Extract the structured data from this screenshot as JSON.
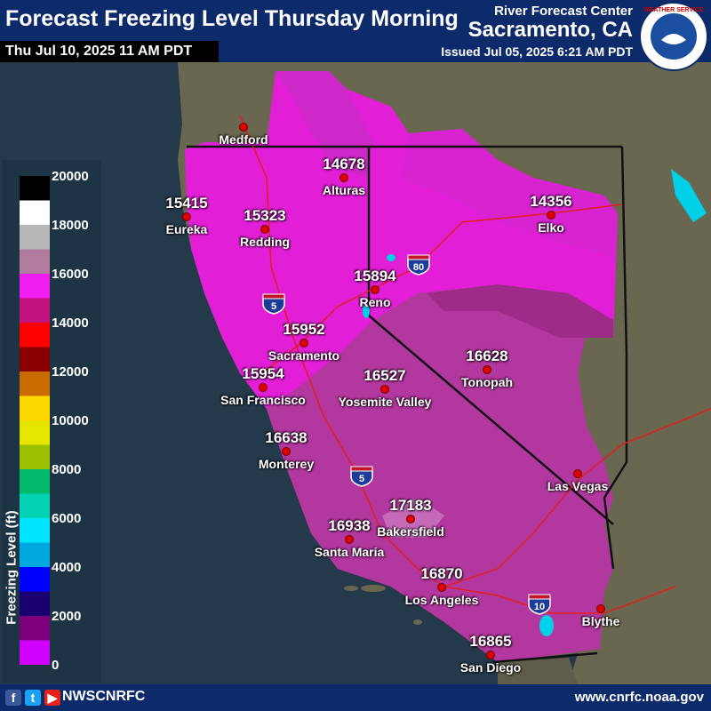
{
  "header": {
    "title": "Forecast Freezing Level Thursday Morning",
    "valid_time": "Thu Jul 10, 2025 11 AM PDT",
    "office_line1": "River Forecast Center",
    "office_line2": "Sacramento, CA",
    "issued": "Issued Jul 05, 2025 6:21 AM PDT"
  },
  "logo_text": "NATIONAL WEATHER SERVICE",
  "legend": {
    "title": "Freezing Level (ft)",
    "ticks": [
      "20000",
      "18000",
      "16000",
      "14000",
      "12000",
      "10000",
      "8000",
      "6000",
      "4000",
      "2000",
      "0"
    ],
    "colors": [
      "#000000",
      "#ffffff",
      "#b8b8b8",
      "#b27ba0",
      "#f01ef0",
      "#c0147e",
      "#ff0000",
      "#8a0000",
      "#c86b00",
      "#ffd800",
      "#e6e600",
      "#9ac000",
      "#00b96a",
      "#00d2b4",
      "#00e5ff",
      "#00a8e0",
      "#0000ff",
      "#1a006e",
      "#7c007c",
      "#d000ff"
    ]
  },
  "stations": [
    {
      "value": "15415",
      "name": "Eureka"
    },
    {
      "value": "15323",
      "name": "Redding"
    },
    {
      "value": "14678",
      "name": "Alturas"
    },
    {
      "value": "14356",
      "name": "Elko"
    },
    {
      "value": "15894",
      "name": "Reno"
    },
    {
      "value": "15952",
      "name": "Sacramento"
    },
    {
      "value": "16628",
      "name": "Tonopah"
    },
    {
      "value": "15954",
      "name": "San Francisco"
    },
    {
      "value": "16527",
      "name": "Yosemite Valley"
    },
    {
      "value": "16638",
      "name": "Monterey"
    },
    {
      "value": "17183",
      "name": "Bakersfield"
    },
    {
      "value": "16938",
      "name": "Santa Maria"
    },
    {
      "value": "16870",
      "name": "Los Angeles"
    },
    {
      "value": "16865",
      "name": "San Diego"
    }
  ],
  "cities": [
    {
      "name": "Medford"
    },
    {
      "name": "Las Vegas"
    },
    {
      "name": "Blythe"
    }
  ],
  "interstates": [
    {
      "number": "5"
    },
    {
      "number": "80"
    },
    {
      "number": "5"
    },
    {
      "number": "10"
    }
  ],
  "footer": {
    "handle": "NWSCNRFC",
    "url": "www.cnrfc.noaa.gov"
  },
  "colors": {
    "header_bg": "#0d2a6b",
    "ocean": "#233645",
    "land": "#6e6a55",
    "freezing_14000": "#c0147e",
    "freezing_15000": "#e11fd6",
    "freezing_16000": "#f01ef0",
    "freezing_17000": "#a34aa0"
  }
}
